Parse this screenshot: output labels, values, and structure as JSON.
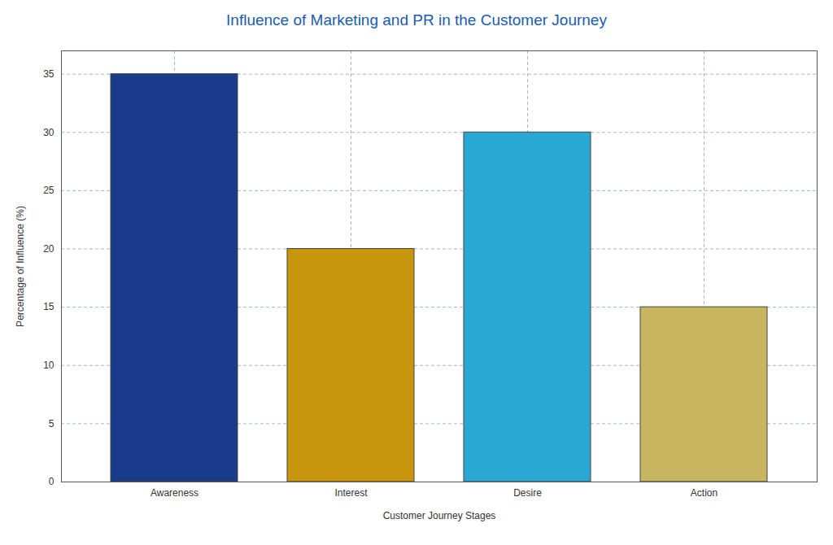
{
  "chart_data": {
    "type": "bar",
    "title": "Influence of Marketing and PR in the Customer Journey",
    "xlabel": "Customer Journey Stages",
    "ylabel": "Percentage of Influence (%)",
    "categories": [
      "Awareness",
      "Interest",
      "Desire",
      "Action"
    ],
    "values": [
      35,
      20,
      30,
      15
    ],
    "colors": [
      "#1a3a8c",
      "#c8960c",
      "#29a8d4",
      "#c8b560"
    ],
    "ylim": [
      0,
      37
    ],
    "yticks": [
      0,
      5,
      10,
      15,
      20,
      25,
      30,
      35
    ],
    "grid": true
  }
}
